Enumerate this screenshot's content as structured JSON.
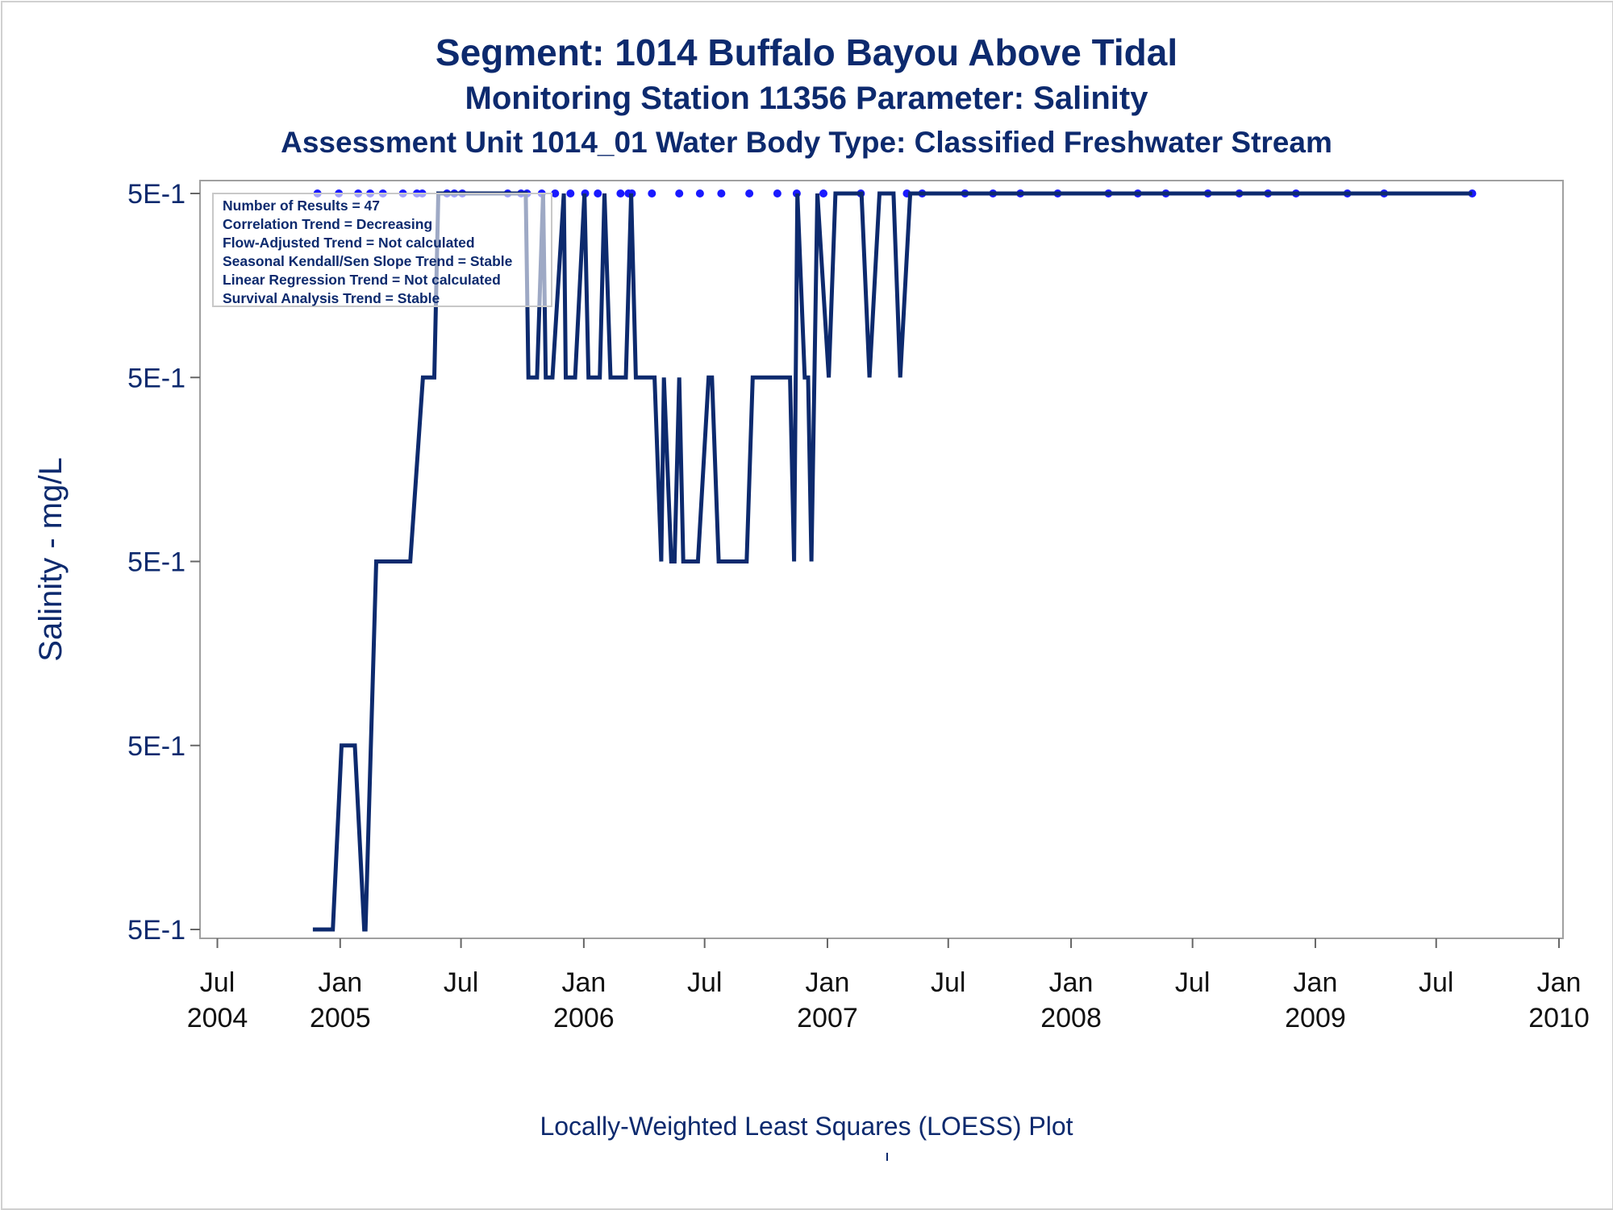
{
  "titles": {
    "line1": "Segment: 1014  Buffalo Bayou Above Tidal",
    "line2": "Monitoring Station 11356 Parameter: Salinity",
    "line3": "Assessment Unit 1014_01   Water Body Type: Classified Freshwater Stream"
  },
  "footnote": "Locally-Weighted Least Squares (LOESS) Plot",
  "stats_box": [
    "Number of Results = 47",
    "Correlation Trend = Decreasing",
    "Flow-Adjusted Trend = Not calculated",
    "Seasonal Kendall/Sen Slope Trend = Stable",
    "Linear Regression Trend = Not calculated",
    "Survival Analysis Trend = Stable"
  ],
  "colors": {
    "title": "#0d2a6e",
    "loess_line": "#0d2a6e",
    "points": "#1a1aff",
    "axis": "#a0a0a0"
  },
  "chart_data": {
    "type": "line",
    "ylabel": "Salinity - mg/L",
    "xlabel": "",
    "y_tick_labels": [
      "5E-1",
      "5E-1",
      "5E-1",
      "5E-1",
      "5E-1"
    ],
    "y_tick_levels": [
      4,
      3,
      2,
      1,
      0
    ],
    "x_ticks": [
      {
        "line1": "Jul",
        "line2": "2004",
        "date": "2004-07-01"
      },
      {
        "line1": "Jan",
        "line2": "2005",
        "date": "2005-01-01"
      },
      {
        "line1": "Jul",
        "line2": "",
        "date": "2005-07-01"
      },
      {
        "line1": "Jan",
        "line2": "2006",
        "date": "2006-01-01"
      },
      {
        "line1": "Jul",
        "line2": "",
        "date": "2006-07-01"
      },
      {
        "line1": "Jan",
        "line2": "2007",
        "date": "2007-01-01"
      },
      {
        "line1": "Jul",
        "line2": "",
        "date": "2007-07-01"
      },
      {
        "line1": "Jan",
        "line2": "2008",
        "date": "2008-01-01"
      },
      {
        "line1": "Jul",
        "line2": "",
        "date": "2008-07-01"
      },
      {
        "line1": "Jan",
        "line2": "2009",
        "date": "2009-01-01"
      },
      {
        "line1": "Jul",
        "line2": "",
        "date": "2009-07-01"
      },
      {
        "line1": "Jan",
        "line2": "2010",
        "date": "2010-01-01"
      }
    ],
    "xlim": [
      "2004-06-01",
      "2010-01-01"
    ],
    "series": [
      {
        "type": "line",
        "x": [
          "2004-11-21",
          "2004-12-01",
          "2004-12-11",
          "2004-12-21",
          "2005-01-03",
          "2005-01-09",
          "2005-01-23",
          "2005-02-06",
          "2005-02-08",
          "2005-02-24",
          "2005-03-01",
          "2005-04-02",
          "2005-04-16",
          "2005-05-05",
          "2005-05-15",
          "2005-05-22",
          "2005-05-28",
          "2005-06-03",
          "2005-07-04",
          "2005-09-18",
          "2005-10-06",
          "2005-10-10",
          "2005-10-14",
          "2005-10-23",
          "2005-11-01",
          "2005-11-05",
          "2005-11-12",
          "2005-11-15",
          "2005-12-02",
          "2005-12-05",
          "2005-12-14",
          "2005-12-19",
          "2006-01-02",
          "2006-01-08",
          "2006-01-17",
          "2006-01-25",
          "2006-02-01",
          "2006-02-10",
          "2006-02-23",
          "2006-03-05",
          "2006-03-13",
          "2006-03-20",
          "2006-03-24",
          "2006-04-12",
          "2006-04-17",
          "2006-04-27",
          "2006-05-01",
          "2006-05-12",
          "2006-05-17",
          "2006-05-24",
          "2006-05-30",
          "2006-06-11",
          "2006-06-21",
          "2006-07-07",
          "2006-07-12",
          "2006-07-22",
          "2006-07-28",
          "2006-08-16",
          "2006-08-20",
          "2006-08-27",
          "2006-09-02",
          "2006-09-11",
          "2006-09-20",
          "2006-09-26",
          "2006-10-10",
          "2006-10-17",
          "2006-10-22",
          "2006-11-03",
          "2006-11-06",
          "2006-11-12",
          "2006-11-17",
          "2006-11-28",
          "2006-12-03",
          "2006-12-08",
          "2006-12-17",
          "2007-01-03",
          "2007-01-13",
          "2007-01-23",
          "2007-01-27",
          "2007-02-04",
          "2007-02-11",
          "2007-02-21",
          "2007-03-05",
          "2007-03-20",
          "2007-04-02",
          "2007-04-10",
          "2007-04-20",
          "2007-05-05",
          "2007-06-06",
          "2007-07-06",
          "2007-08-07",
          "2007-09-08",
          "2007-10-10",
          "2007-11-11",
          "2007-12-13",
          "2008-01-14",
          "2008-02-15",
          "2008-03-18",
          "2008-04-19",
          "2008-05-21",
          "2008-06-22",
          "2008-07-24",
          "2008-08-25",
          "2008-09-26",
          "2008-10-28",
          "2008-11-29",
          "2008-12-31",
          "2009-02-01",
          "2009-03-05",
          "2009-04-06",
          "2009-05-08",
          "2009-06-09",
          "2009-07-11",
          "2009-08-12",
          "2009-08-24"
        ],
        "y": [
          0.0,
          0.0,
          0.0,
          0.0,
          1.0,
          1.0,
          1.0,
          0.0,
          0.0,
          2.0,
          2.0,
          2.0,
          2.0,
          3.0,
          3.0,
          3.0,
          4.0,
          4.0,
          4.0,
          4.0,
          4.0,
          3.0,
          3.0,
          3.0,
          4.0,
          3.0,
          3.0,
          3.0,
          4.0,
          3.0,
          3.0,
          3.0,
          4.0,
          3.0,
          3.0,
          3.0,
          4.0,
          3.0,
          3.0,
          3.0,
          4.0,
          3.0,
          3.0,
          3.0,
          3.0,
          2.0,
          3.0,
          2.0,
          2.0,
          3.0,
          2.0,
          2.0,
          2.0,
          3.0,
          3.0,
          2.0,
          2.0,
          2.0,
          2.0,
          2.0,
          2.0,
          3.0,
          3.0,
          3.0,
          3.0,
          3.0,
          3.0,
          3.0,
          3.0,
          2.0,
          4.0,
          3.0,
          3.0,
          2.0,
          4.0,
          3.0,
          4.0,
          4.0,
          4.0,
          4.0,
          4.0,
          4.0,
          3.0,
          4.0,
          4.0,
          4.0,
          3.0,
          4.0,
          4.0,
          4.0,
          4.0,
          4.0,
          4.0,
          4.0,
          4.0,
          4.0,
          4.0,
          4.0,
          4.0,
          4.0,
          4.0,
          4.0,
          4.0,
          4.0,
          4.0,
          4.0,
          4.0,
          4.0,
          4.0,
          4.0,
          4.0,
          4.0,
          4.0,
          4.0,
          4.0
        ]
      },
      {
        "type": "scatter",
        "x": [
          "2004-11-28",
          "2004-12-30",
          "2005-01-28",
          "2005-02-15",
          "2005-03-06",
          "2005-04-05",
          "2005-04-26",
          "2005-05-04",
          "2005-06-10",
          "2005-06-21",
          "2005-07-03",
          "2005-09-09",
          "2005-09-29",
          "2005-10-08",
          "2005-10-30",
          "2005-11-19",
          "2005-12-12",
          "2006-01-03",
          "2006-01-22",
          "2006-02-25",
          "2006-03-09",
          "2006-03-14",
          "2006-04-13",
          "2006-05-24",
          "2006-06-24",
          "2006-07-26",
          "2006-09-06",
          "2006-10-18",
          "2006-11-16",
          "2006-12-26",
          "2007-02-20",
          "2007-04-30",
          "2007-05-23",
          "2007-07-26",
          "2007-09-06",
          "2007-10-17",
          "2007-12-12",
          "2008-02-26",
          "2008-04-10",
          "2008-05-22",
          "2008-07-24",
          "2008-09-09",
          "2008-10-22",
          "2008-12-03",
          "2009-02-18",
          "2009-04-14",
          "2009-08-24"
        ],
        "y": [
          4,
          4,
          4,
          4,
          4,
          4,
          4,
          4,
          4,
          4,
          4,
          4,
          4,
          4,
          4,
          4,
          4,
          4,
          4,
          4,
          4,
          4,
          4,
          4,
          4,
          4,
          4,
          4,
          4,
          4,
          4,
          4,
          4,
          4,
          4,
          4,
          4,
          4,
          4,
          4,
          4,
          4,
          4,
          4,
          4,
          4,
          4
        ]
      }
    ],
    "grid": false,
    "legend": "none"
  }
}
